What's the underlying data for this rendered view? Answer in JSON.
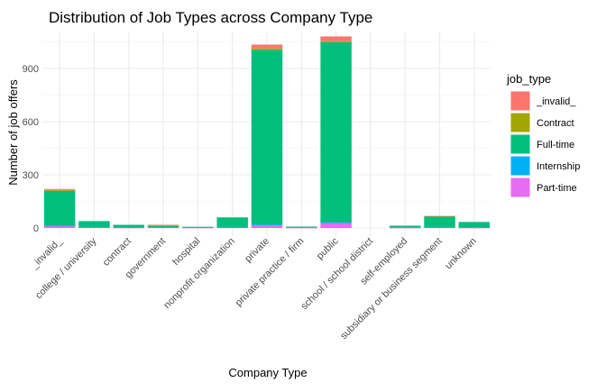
{
  "chart_data": {
    "type": "bar",
    "stacked": true,
    "title": "Distribution of Job Types across Company Type",
    "xlabel": "Company Type",
    "ylabel": "Number of job offers",
    "ylim": [
      0,
      1100
    ],
    "yticks": [
      0,
      300,
      600,
      900
    ],
    "grid": true,
    "legend_position": "right",
    "legend_title": "job_type",
    "categories": [
      "_invalid_",
      "college / university",
      "contract",
      "government",
      "hospital",
      "nonprofit organization",
      "private",
      "private practice / firm",
      "public",
      "school / school district",
      "self-employed",
      "subsidiary or business segment",
      "unknown"
    ],
    "series": [
      {
        "name": "_invalid_",
        "color": "#F8766D",
        "values": [
          5,
          0,
          0,
          3,
          0,
          0,
          22,
          0,
          28,
          0,
          0,
          2,
          0
        ]
      },
      {
        "name": "Contract",
        "color": "#A3A500",
        "values": [
          5,
          0,
          0,
          3,
          0,
          0,
          8,
          0,
          5,
          0,
          0,
          2,
          0
        ]
      },
      {
        "name": "Full-time",
        "color": "#00BF7D",
        "values": [
          198,
          34,
          17,
          10,
          6,
          58,
          985,
          7,
          1015,
          0,
          12,
          62,
          33
        ]
      },
      {
        "name": "Internship",
        "color": "#00B0F6",
        "values": [
          2,
          1,
          0,
          0,
          0,
          0,
          5,
          0,
          5,
          0,
          0,
          0,
          0
        ]
      },
      {
        "name": "Part-time",
        "color": "#E76BF3",
        "values": [
          10,
          4,
          1,
          2,
          1,
          2,
          15,
          1,
          28,
          0,
          1,
          2,
          1
        ]
      }
    ]
  }
}
